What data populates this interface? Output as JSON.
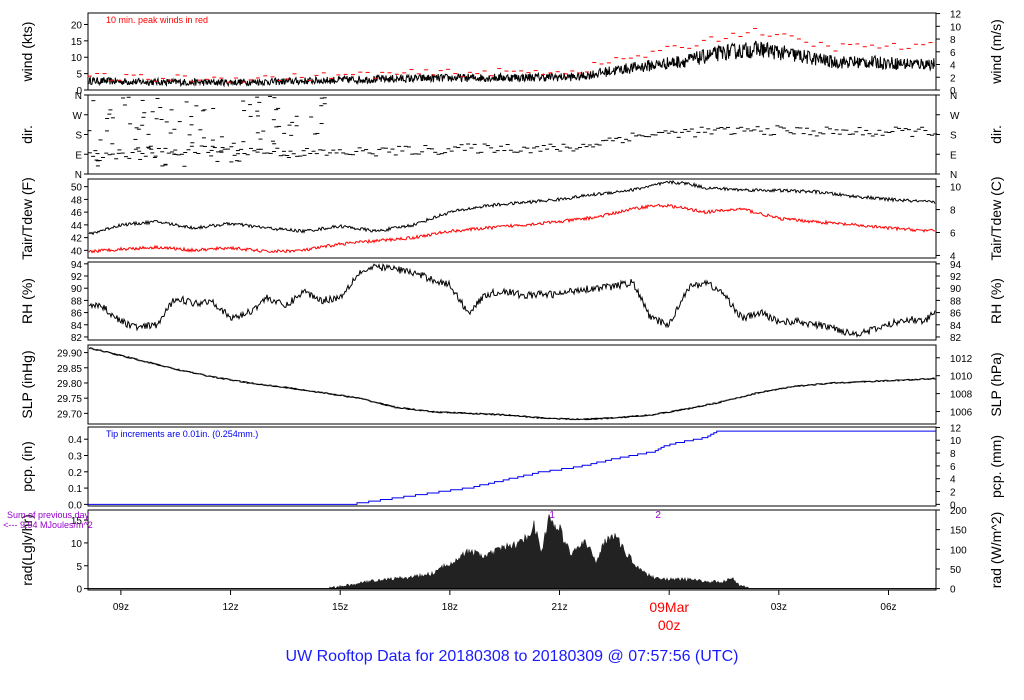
{
  "title": "UW Rooftop Data for 20180308  to  20180309 @ 07:57:56  (UTC)",
  "chart_data": {
    "type": "line",
    "x_axis": {
      "unit": "hours since 08z 2018-03-08",
      "range": [
        0.6,
        23.8
      ],
      "ticks": [
        {
          "x": 1.5,
          "label": "09z"
        },
        {
          "x": 4.5,
          "label": "12z"
        },
        {
          "x": 7.5,
          "label": "15z"
        },
        {
          "x": 10.5,
          "label": "18z"
        },
        {
          "x": 13.5,
          "label": "21z"
        },
        {
          "x": 16.5,
          "label": "00z"
        },
        {
          "x": 19.5,
          "label": "03z"
        },
        {
          "x": 22.5,
          "label": "06z"
        }
      ],
      "date_label": "09Mar",
      "date_label_color": "#ff0000"
    },
    "panels": [
      {
        "id": "wind",
        "ylabel": "wind (kts)",
        "ylabel_right": "wind (m/s)",
        "ylim": [
          0,
          23.5
        ],
        "ticks_left": [
          0,
          5,
          10,
          15,
          20
        ],
        "ticks_right": [
          {
            "v": 0,
            "at": 0
          },
          {
            "v": 2,
            "at": 3.89
          },
          {
            "v": 4,
            "at": 7.78
          },
          {
            "v": 6,
            "at": 11.66
          },
          {
            "v": 8,
            "at": 15.55
          },
          {
            "v": 10,
            "at": 19.44
          },
          {
            "v": 12,
            "at": 23.33
          }
        ],
        "annotation": "10 min. peak winds in red",
        "annotation_color": "#ff0000",
        "series": [
          {
            "style": "noisy",
            "color": "#000000",
            "noise": 1.8,
            "x": [
              0.6,
              2,
              4,
              6,
              8,
              10,
              12,
              14,
              15,
              16,
              17,
              18,
              19,
              20,
              21,
              22,
              23,
              23.8
            ],
            "y": [
              2.8,
              2.5,
              2.3,
              2.6,
              3.2,
              3.6,
              3.8,
              4.0,
              6.0,
              7.5,
              9.0,
              11.5,
              12.5,
              10.5,
              8.5,
              8.5,
              8.0,
              8.0
            ]
          },
          {
            "style": "dashes",
            "color": "#ff0000",
            "step": 0.2,
            "noise": 1.2,
            "x": [
              0.6,
              2,
              4,
              6,
              8,
              10,
              12,
              14,
              15,
              16,
              17,
              18,
              19,
              20,
              21,
              22,
              23,
              23.8
            ],
            "y": [
              4.0,
              3.6,
              3.4,
              3.8,
              4.6,
              5.2,
              5.4,
              5.8,
              9.0,
              11.0,
              13.5,
              16.5,
              18.0,
              15.0,
              13.0,
              13.5,
              13.0,
              13.5
            ]
          }
        ]
      },
      {
        "id": "dir",
        "ylabel": "dir.",
        "ylabel_right": "dir.",
        "ylim": [
          0,
          360
        ],
        "ticks_left_labels": [
          {
            "v": 0,
            "label": "N"
          },
          {
            "v": 90,
            "label": "E"
          },
          {
            "v": 180,
            "label": "S"
          },
          {
            "v": 270,
            "label": "W"
          },
          {
            "v": 360,
            "label": "N"
          }
        ],
        "ticks_right_labels": [
          {
            "v": 0,
            "label": "N"
          },
          {
            "v": 90,
            "label": "E"
          },
          {
            "v": 180,
            "label": "S"
          },
          {
            "v": 270,
            "label": "W"
          },
          {
            "v": 360,
            "label": "N"
          }
        ],
        "series": [
          {
            "style": "dashes",
            "color": "#000000",
            "step": 0.09,
            "noise": 22,
            "x": [
              0.6,
              2,
              4,
              6,
              7,
              8,
              10,
              12,
              13,
              14,
              15,
              16,
              17,
              18,
              19,
              20,
              22,
              23.8
            ],
            "y": [
              80,
              95,
              110,
              100,
              95,
              100,
              110,
              120,
              115,
              120,
              160,
              180,
              190,
              195,
              200,
              195,
              190,
              195
            ]
          },
          {
            "style": "scatter-dashes",
            "color": "#000000",
            "range": [
              0.6,
              7.2
            ],
            "count": 110,
            "ymin": 30,
            "ymax": 355
          }
        ]
      },
      {
        "id": "temp",
        "ylabel": "Tair/Tdew (F)",
        "ylabel_right": "Tair/Tdew (C)",
        "ylim": [
          38.8,
          51.2
        ],
        "ticks_left": [
          40,
          42,
          44,
          46,
          48,
          50
        ],
        "ticks_right": [
          {
            "v": 4,
            "at": 39.2
          },
          {
            "v": 6,
            "at": 42.8
          },
          {
            "v": 8,
            "at": 46.4
          },
          {
            "v": 10,
            "at": 50.0
          }
        ],
        "series": [
          {
            "style": "line",
            "color": "#000000",
            "noise": 0.25,
            "x": [
              0.6,
              1.5,
              2.5,
              3.5,
              4.5,
              5.5,
              6.5,
              7.5,
              8.5,
              9.5,
              10.5,
              11.5,
              12.5,
              13.5,
              14.5,
              15.5,
              16.5,
              17.0,
              17.5,
              18.5,
              19.5,
              20.5,
              21.5,
              22.5,
              23.8
            ],
            "y": [
              42.5,
              44.0,
              44.5,
              43.5,
              44.2,
              43.5,
              43.0,
              43.8,
              43.0,
              44.0,
              46.0,
              47.0,
              47.5,
              48.0,
              48.8,
              49.5,
              50.7,
              50.5,
              49.8,
              49.5,
              49.4,
              49.2,
              48.5,
              48.0,
              47.5
            ]
          },
          {
            "style": "line",
            "color": "#ff0000",
            "noise": 0.25,
            "x": [
              0.6,
              1.5,
              2.5,
              3.5,
              4.5,
              5.5,
              6.5,
              7.5,
              8.5,
              9.5,
              10.5,
              11.5,
              12.5,
              13.5,
              14.5,
              15.5,
              16.0,
              16.5,
              17.5,
              18.5,
              19.5,
              20.5,
              21.5,
              22.5,
              23.8
            ],
            "y": [
              39.8,
              40.2,
              40.5,
              40.0,
              40.4,
              39.8,
              40.0,
              41.0,
              41.5,
              42.0,
              43.0,
              43.5,
              44.0,
              44.5,
              45.2,
              46.5,
              47.0,
              47.0,
              46.0,
              46.5,
              45.0,
              44.5,
              44.0,
              43.5,
              43.0
            ]
          }
        ]
      },
      {
        "id": "rh",
        "ylabel": "RH (%)",
        "ylabel_right": "RH (%)",
        "ylim": [
          81.5,
          94.3
        ],
        "ticks_left": [
          82,
          84,
          86,
          88,
          90,
          92,
          94
        ],
        "ticks_right": [
          {
            "v": 82,
            "at": 82
          },
          {
            "v": 84,
            "at": 84
          },
          {
            "v": 86,
            "at": 86
          },
          {
            "v": 88,
            "at": 88
          },
          {
            "v": 90,
            "at": 90
          },
          {
            "v": 92,
            "at": 92
          },
          {
            "v": 94,
            "at": 94
          }
        ],
        "series": [
          {
            "style": "line",
            "color": "#000000",
            "noise": 0.6,
            "x": [
              0.6,
              1.0,
              1.5,
              2.0,
              2.5,
              3.0,
              3.5,
              4.0,
              4.5,
              5.0,
              5.5,
              6.0,
              6.5,
              7.0,
              7.5,
              8.0,
              8.5,
              9.0,
              9.5,
              10.0,
              10.5,
              11.0,
              11.5,
              12.0,
              12.5,
              13.0,
              13.5,
              14.0,
              14.5,
              15.0,
              15.5,
              16.0,
              16.5,
              17.0,
              17.5,
              18.0,
              18.5,
              19.0,
              19.5,
              20.0,
              20.5,
              21.0,
              21.5,
              22.0,
              22.5,
              23.0,
              23.5,
              23.8
            ],
            "y": [
              87.5,
              87.0,
              84.5,
              83.5,
              84.0,
              88.5,
              87.5,
              88.0,
              85.0,
              86.0,
              88.5,
              87.0,
              89.5,
              88.0,
              88.5,
              92.5,
              93.5,
              93.2,
              92.5,
              91.5,
              90.5,
              86.0,
              89.0,
              89.5,
              88.8,
              89.0,
              89.0,
              89.8,
              90.0,
              90.3,
              91.0,
              85.0,
              84.0,
              90.0,
              91.0,
              89.0,
              85.0,
              86.0,
              84.5,
              84.5,
              84.0,
              83.5,
              82.5,
              83.0,
              84.0,
              85.0,
              84.5,
              86.5
            ]
          }
        ]
      },
      {
        "id": "slp",
        "ylabel": "SLP (inHg)",
        "ylabel_right": "SLP (hPa)",
        "ylim": [
          29.665,
          29.925
        ],
        "ticks_left": [
          29.7,
          29.75,
          29.8,
          29.85,
          29.9
        ],
        "ticks_left_fmt": 2,
        "ticks_right": [
          {
            "v": 1006,
            "at": 29.706
          },
          {
            "v": 1008,
            "at": 29.765
          },
          {
            "v": 1010,
            "at": 29.824
          },
          {
            "v": 1012,
            "at": 29.883
          }
        ],
        "series": [
          {
            "style": "step",
            "color": "#000000",
            "noise": 0.002,
            "x": [
              0.6,
              1.0,
              2.0,
              3.0,
              4.0,
              5.0,
              6.0,
              7.0,
              8.0,
              9.0,
              10.0,
              11.0,
              12.0,
              13.0,
              14.0,
              15.0,
              16.0,
              17.0,
              18.0,
              19.0,
              20.0,
              21.0,
              22.0,
              23.0,
              23.8
            ],
            "y": [
              29.915,
              29.905,
              29.875,
              29.845,
              29.82,
              29.8,
              29.785,
              29.768,
              29.75,
              29.72,
              29.705,
              29.7,
              29.695,
              29.685,
              29.68,
              29.685,
              29.695,
              29.715,
              29.74,
              29.77,
              29.79,
              29.8,
              29.805,
              29.81,
              29.815
            ]
          }
        ]
      },
      {
        "id": "pcp",
        "ylabel": "pcp. (in)",
        "ylabel_right": "pcp. (mm)",
        "ylim": [
          -0.01,
          0.475
        ],
        "ticks_left": [
          0.0,
          0.1,
          0.2,
          0.3,
          0.4
        ],
        "ticks_left_fmt": 1,
        "ticks_right": [
          {
            "v": 0,
            "at": 0
          },
          {
            "v": 2,
            "at": 0.0787
          },
          {
            "v": 4,
            "at": 0.1575
          },
          {
            "v": 6,
            "at": 0.2362
          },
          {
            "v": 8,
            "at": 0.315
          },
          {
            "v": 10,
            "at": 0.3937
          },
          {
            "v": 12,
            "at": 0.4724
          }
        ],
        "annotation": "Tip increments are 0.01in. (0.254mm.)",
        "annotation_color": "#0000ee",
        "series": [
          {
            "style": "staircase",
            "color": "#0000ee",
            "x": [
              0.6,
              7.8,
              9.0,
              10.0,
              11.0,
              12.0,
              13.0,
              14.0,
              15.0,
              16.0,
              16.5,
              17.0,
              17.5,
              17.8,
              18.0,
              23.8
            ],
            "y": [
              0.0,
              0.0,
              0.04,
              0.07,
              0.1,
              0.15,
              0.2,
              0.23,
              0.28,
              0.32,
              0.37,
              0.39,
              0.41,
              0.45,
              0.45,
              0.45
            ]
          }
        ]
      },
      {
        "id": "rad",
        "ylabel": "rad(Lgly/hr)",
        "ylabel_right": "rad (W/m^2)",
        "ylim": [
          -0.3,
          17.2
        ],
        "ticks_left": [
          0,
          5,
          10,
          15
        ],
        "ticks_left_shown": [
          "0",
          "5",
          "10",
          "15"
        ],
        "ticks_right": [
          {
            "v": 0,
            "at": 0
          },
          {
            "v": 50,
            "at": 4.3
          },
          {
            "v": 100,
            "at": 8.6
          },
          {
            "v": 150,
            "at": 12.9
          },
          {
            "v": 200,
            "at": 17.2
          }
        ],
        "annotation": "Sum of previous day",
        "annotation2": "<--- 9.94 MJoules/m^2",
        "annotation_color": "#9900cc",
        "markers": [
          {
            "x": 13.3,
            "label": "1"
          },
          {
            "x": 16.2,
            "label": "2"
          }
        ],
        "series": [
          {
            "style": "area",
            "color": "#222222",
            "noise": 0.8,
            "x": [
              0.6,
              7.0,
              7.4,
              7.8,
              8.5,
              9.5,
              10.0,
              10.5,
              11.0,
              11.5,
              12.0,
              12.5,
              12.8,
              13.0,
              13.2,
              13.5,
              13.8,
              14.0,
              14.2,
              14.5,
              14.8,
              15.0,
              15.2,
              15.6,
              16.0,
              16.5,
              17.0,
              17.5,
              18.0,
              18.2,
              18.4,
              18.7,
              23.8
            ],
            "y": [
              0,
              0,
              0.3,
              0.8,
              1.8,
              2.5,
              3.2,
              5.5,
              8.0,
              7.0,
              9.0,
              10.0,
              14.0,
              8.0,
              15.0,
              13.0,
              7.5,
              9.0,
              10.0,
              6.0,
              11.0,
              12.0,
              9.0,
              5.0,
              2.5,
              2.0,
              2.0,
              1.5,
              1.5,
              2.5,
              0.8,
              0,
              0
            ]
          }
        ]
      }
    ]
  }
}
